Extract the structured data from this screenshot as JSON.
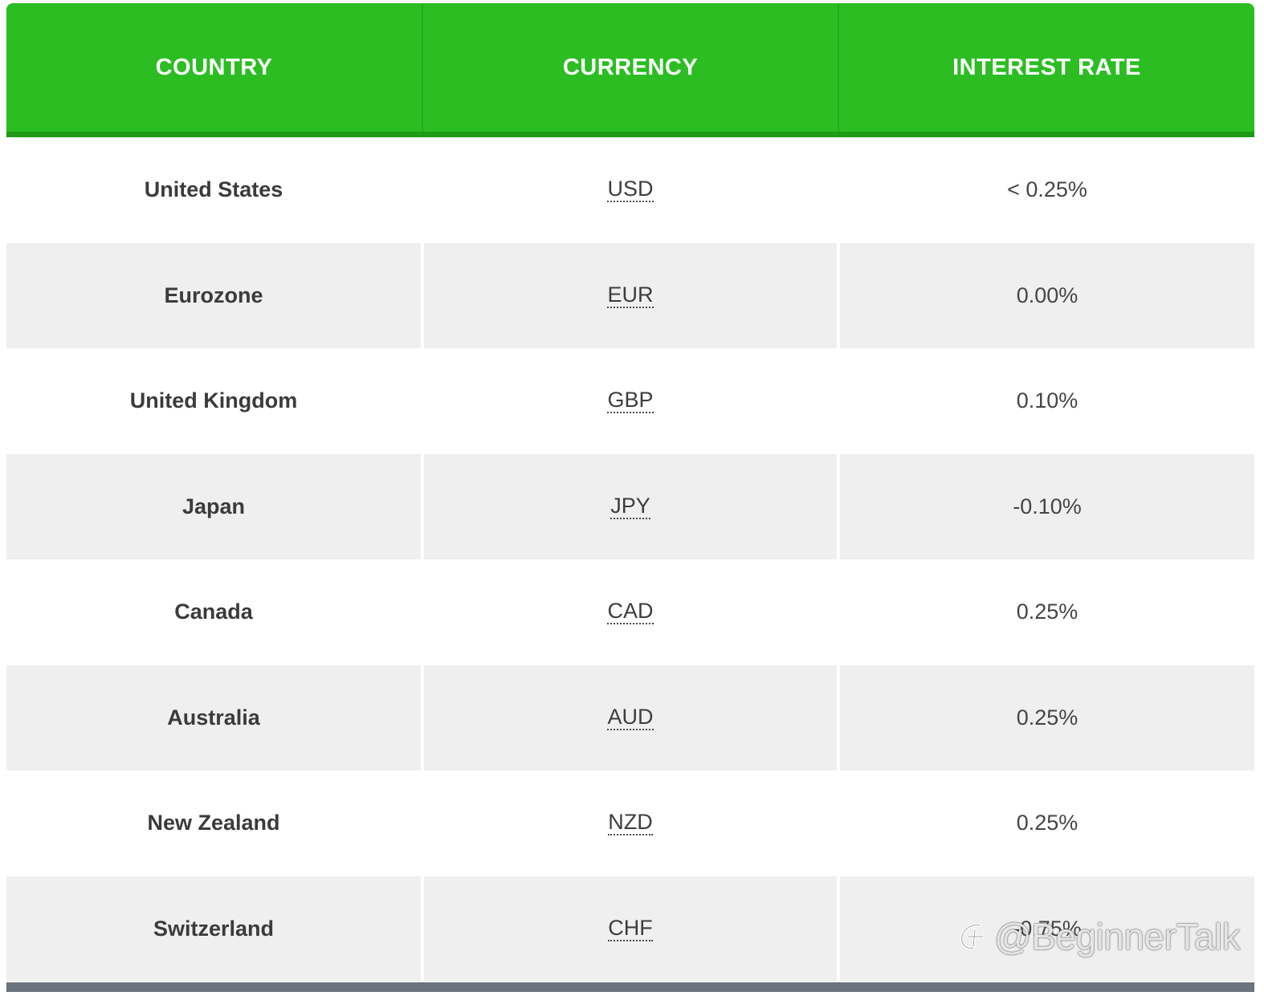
{
  "table": {
    "headers": {
      "country": "COUNTRY",
      "currency": "CURRENCY",
      "interest_rate": "INTEREST RATE"
    },
    "rows": [
      {
        "country": "United States",
        "currency": "USD",
        "rate": "< 0.25%"
      },
      {
        "country": "Eurozone",
        "currency": "EUR",
        "rate": "0.00%"
      },
      {
        "country": "United Kingdom",
        "currency": "GBP",
        "rate": "0.10%"
      },
      {
        "country": "Japan",
        "currency": "JPY",
        "rate": "-0.10%"
      },
      {
        "country": "Canada",
        "currency": "CAD",
        "rate": "0.25%"
      },
      {
        "country": "Australia",
        "currency": "AUD",
        "rate": "0.25%"
      },
      {
        "country": "New Zealand",
        "currency": "NZD",
        "rate": "0.25%"
      },
      {
        "country": "Switzerland",
        "currency": "CHF",
        "rate": "-0.75%"
      }
    ]
  },
  "watermark": {
    "text": "@BeginnerTalk",
    "icon": "weibo-logo-icon"
  },
  "colors": {
    "header_bg": "#2bbd22",
    "header_text": "#ffffff",
    "row_alt_bg": "#efefef",
    "footer_bar": "#6b737c"
  }
}
